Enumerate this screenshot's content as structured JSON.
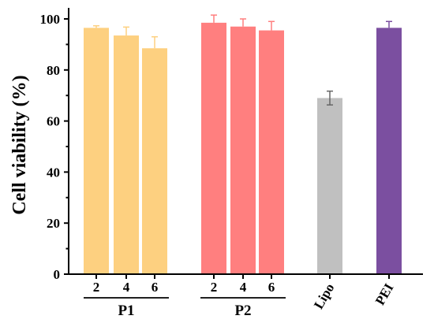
{
  "chart_data": {
    "type": "bar",
    "ylabel": "Cell viability (%)",
    "ylim": [
      0,
      100
    ],
    "yticks": [
      "0",
      "20",
      "40",
      "60",
      "80",
      "100"
    ],
    "bars": [
      {
        "label": "2",
        "group": "P1",
        "value": 96.5,
        "error": 0.8,
        "color": "#FDD080"
      },
      {
        "label": "4",
        "group": "P1",
        "value": 93.5,
        "error": 3.3,
        "color": "#FDD080"
      },
      {
        "label": "6",
        "group": "P1",
        "value": 88.5,
        "error": 4.5,
        "color": "#FDD080"
      },
      {
        "label": "2",
        "group": "P2",
        "value": 98.5,
        "error": 3.0,
        "color": "#FF7F7F"
      },
      {
        "label": "4",
        "group": "P2",
        "value": 97.0,
        "error": 3.0,
        "color": "#FF7F7F"
      },
      {
        "label": "6",
        "group": "P2",
        "value": 95.5,
        "error": 3.5,
        "color": "#FF7F7F"
      },
      {
        "label": "Lipo",
        "group": "",
        "value": 69.0,
        "error": 2.7,
        "color": "#C0C0C0"
      },
      {
        "label": "PEI",
        "group": "",
        "value": 96.5,
        "error": 2.5,
        "color": "#7B4FA0"
      }
    ],
    "groups": [
      "P1",
      "P2"
    ]
  }
}
